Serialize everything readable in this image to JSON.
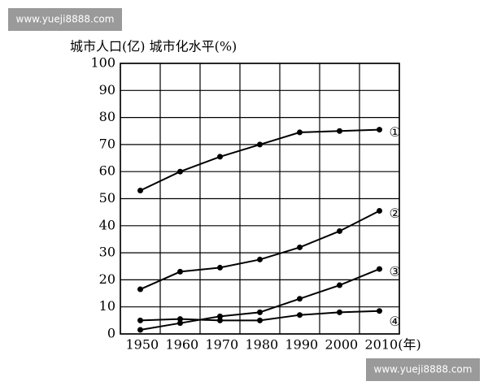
{
  "watermark": "www.yueji8888.com",
  "chart_data": {
    "type": "line",
    "y_axis_label": "城市人口(亿) 城市化水平(%)",
    "categories": [
      "1950",
      "1960",
      "1970",
      "1980",
      "1990",
      "2000",
      "2010(年)"
    ],
    "series": [
      {
        "name": "①",
        "color": "#000000",
        "values": [
          53,
          60,
          65.5,
          70,
          74.5,
          75,
          75.5
        ]
      },
      {
        "name": "②",
        "color": "#000000",
        "values": [
          16.5,
          23,
          24.5,
          27.5,
          32,
          38,
          45.5
        ]
      },
      {
        "name": "③",
        "color": "#000000",
        "values": [
          1.5,
          4,
          6.5,
          8,
          13,
          18,
          24
        ]
      },
      {
        "name": "④",
        "color": "#000000",
        "values": [
          5,
          5.5,
          5,
          5,
          7,
          8,
          8.5
        ]
      }
    ],
    "ylim": [
      0,
      100
    ],
    "yticks": [
      0,
      10,
      20,
      30,
      40,
      50,
      60,
      70,
      80,
      90,
      100
    ],
    "grid": true
  }
}
